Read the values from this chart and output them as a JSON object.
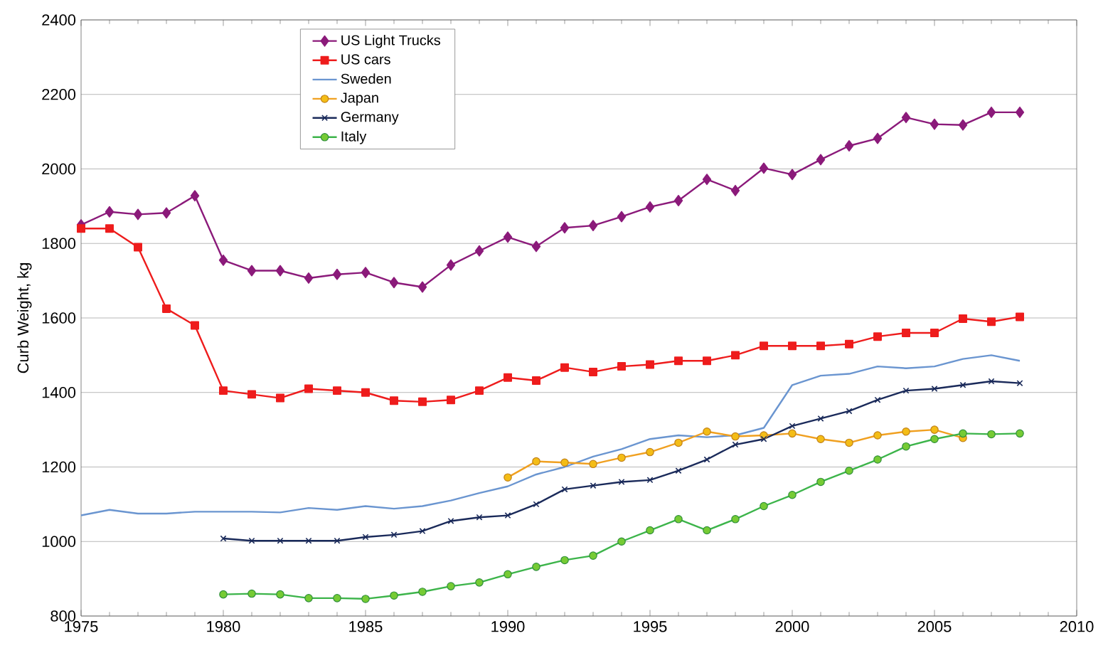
{
  "chart_data": {
    "type": "line",
    "ylabel": "Curb Weight, kg",
    "xlim": [
      1975,
      2010
    ],
    "xticks": [
      1975,
      1980,
      1985,
      1990,
      1995,
      2000,
      2005,
      2010
    ],
    "ylim": [
      800,
      2400
    ],
    "yticks": [
      800,
      1000,
      1200,
      1400,
      1600,
      1800,
      2000,
      2200,
      2400
    ],
    "grid": "y",
    "legend": "top left",
    "series": [
      {
        "name": "US Light Trucks",
        "color": "#8b1a7a",
        "marker": "diamond",
        "x": [
          1975,
          1976,
          1977,
          1978,
          1979,
          1980,
          1981,
          1982,
          1983,
          1984,
          1985,
          1986,
          1987,
          1988,
          1989,
          1990,
          1991,
          1992,
          1993,
          1994,
          1995,
          1996,
          1997,
          1998,
          1999,
          2000,
          2001,
          2002,
          2003,
          2004,
          2005,
          2006,
          2007,
          2008
        ],
        "values": [
          1850,
          1885,
          1878,
          1882,
          1928,
          1755,
          1727,
          1727,
          1707,
          1717,
          1722,
          1695,
          1683,
          1742,
          1780,
          1817,
          1792,
          1842,
          1848,
          1872,
          1898,
          1915,
          1972,
          1942,
          2002,
          1985,
          2025,
          2062,
          2082,
          2138,
          2120,
          2118,
          2152,
          2152
        ]
      },
      {
        "name": "US cars",
        "color": "#ee1c1c",
        "marker": "square",
        "x": [
          1975,
          1976,
          1977,
          1978,
          1979,
          1980,
          1981,
          1982,
          1983,
          1984,
          1985,
          1986,
          1987,
          1988,
          1989,
          1990,
          1991,
          1992,
          1993,
          1994,
          1995,
          1996,
          1997,
          1998,
          1999,
          2000,
          2001,
          2002,
          2003,
          2004,
          2005,
          2006,
          2007,
          2008
        ],
        "values": [
          1840,
          1840,
          1790,
          1625,
          1580,
          1405,
          1395,
          1385,
          1410,
          1405,
          1400,
          1378,
          1375,
          1380,
          1405,
          1440,
          1432,
          1467,
          1455,
          1470,
          1475,
          1485,
          1485,
          1500,
          1525,
          1525,
          1525,
          1530,
          1550,
          1560,
          1560,
          1598,
          1590,
          1603
        ]
      },
      {
        "name": "Sweden",
        "color": "#6a95d0",
        "marker": "none",
        "x": [
          1975,
          1976,
          1977,
          1978,
          1979,
          1980,
          1981,
          1982,
          1983,
          1984,
          1985,
          1986,
          1987,
          1988,
          1989,
          1990,
          1991,
          1992,
          1993,
          1994,
          1995,
          1996,
          1997,
          1998,
          1999,
          2000,
          2001,
          2002,
          2003,
          2004,
          2005,
          2006,
          2007,
          2008
        ],
        "values": [
          1070,
          1085,
          1075,
          1075,
          1080,
          1080,
          1080,
          1078,
          1090,
          1085,
          1095,
          1088,
          1095,
          1110,
          1130,
          1148,
          1180,
          1200,
          1228,
          1248,
          1275,
          1285,
          1280,
          1285,
          1305,
          1420,
          1445,
          1450,
          1470,
          1465,
          1470,
          1490,
          1500,
          1485
        ]
      },
      {
        "name": "Japan",
        "color": "#f0a020",
        "marker": "circle",
        "x": [
          1990,
          1991,
          1992,
          1993,
          1994,
          1995,
          1996,
          1997,
          1998,
          1999,
          2000,
          2001,
          2002,
          2003,
          2004,
          2005,
          2006
        ],
        "values": [
          1172,
          1215,
          1212,
          1208,
          1225,
          1240,
          1265,
          1295,
          1282,
          1285,
          1290,
          1275,
          1265,
          1285,
          1295,
          1300,
          1278
        ]
      },
      {
        "name": "Germany",
        "color": "#1a2a5a",
        "marker": "cross",
        "x": [
          1980,
          1981,
          1982,
          1983,
          1984,
          1985,
          1986,
          1987,
          1988,
          1989,
          1990,
          1991,
          1992,
          1993,
          1994,
          1995,
          1996,
          1997,
          1998,
          1999,
          2000,
          2001,
          2002,
          2003,
          2004,
          2005,
          2006,
          2007,
          2008
        ],
        "values": [
          1008,
          1002,
          1002,
          1002,
          1002,
          1012,
          1018,
          1028,
          1055,
          1065,
          1070,
          1100,
          1140,
          1150,
          1160,
          1165,
          1190,
          1220,
          1260,
          1275,
          1310,
          1330,
          1350,
          1380,
          1405,
          1410,
          1420,
          1430,
          1425
        ]
      },
      {
        "name": "Italy",
        "color": "#3cb44a",
        "marker": "circle",
        "x": [
          1980,
          1981,
          1982,
          1983,
          1984,
          1985,
          1986,
          1987,
          1988,
          1989,
          1990,
          1991,
          1992,
          1993,
          1994,
          1995,
          1996,
          1997,
          1998,
          1999,
          2000,
          2001,
          2002,
          2003,
          2004,
          2005,
          2006,
          2007,
          2008
        ],
        "values": [
          858,
          860,
          858,
          848,
          848,
          846,
          855,
          865,
          880,
          890,
          912,
          932,
          950,
          962,
          1000,
          1030,
          1060,
          1030,
          1060,
          1095,
          1125,
          1160,
          1190,
          1220,
          1255,
          1275,
          1290,
          1288,
          1290
        ]
      }
    ]
  }
}
